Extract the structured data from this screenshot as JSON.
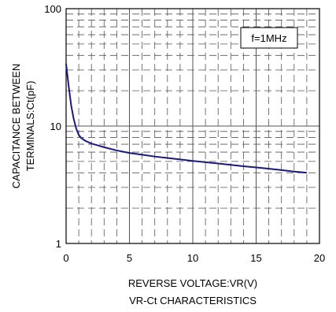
{
  "chart_data": {
    "type": "line",
    "title": "VR-Ct CHARACTERISTICS",
    "xlabel": "REVERSE VOLTAGE:VR(V)",
    "ylabel_lines": [
      "CAPACITANCE BETWEEN",
      "TERMINALS:Ct(pF)"
    ],
    "xlim": [
      0,
      20
    ],
    "ylim": [
      1,
      100
    ],
    "y_scale": "log",
    "grid": true,
    "x_ticks": [
      "0",
      "5",
      "10",
      "15",
      "20"
    ],
    "y_ticks": [
      "1",
      "10",
      "100"
    ],
    "annotation": "f=1MHz",
    "line_color": "#1a1a7a",
    "series": [
      {
        "x": [
          0,
          0.2,
          0.4,
          0.6,
          0.8,
          1.0,
          1.2,
          1.5,
          2,
          3,
          4,
          5,
          6,
          7,
          8,
          9,
          10,
          11,
          12,
          13,
          14,
          15,
          16,
          17,
          18,
          19
        ],
        "y": [
          34,
          22,
          15,
          11.5,
          9.5,
          8.4,
          7.9,
          7.5,
          7.1,
          6.6,
          6.2,
          5.9,
          5.7,
          5.5,
          5.35,
          5.2,
          5.05,
          4.92,
          4.8,
          4.67,
          4.55,
          4.44,
          4.33,
          4.22,
          4.1,
          4.0
        ]
      }
    ]
  }
}
